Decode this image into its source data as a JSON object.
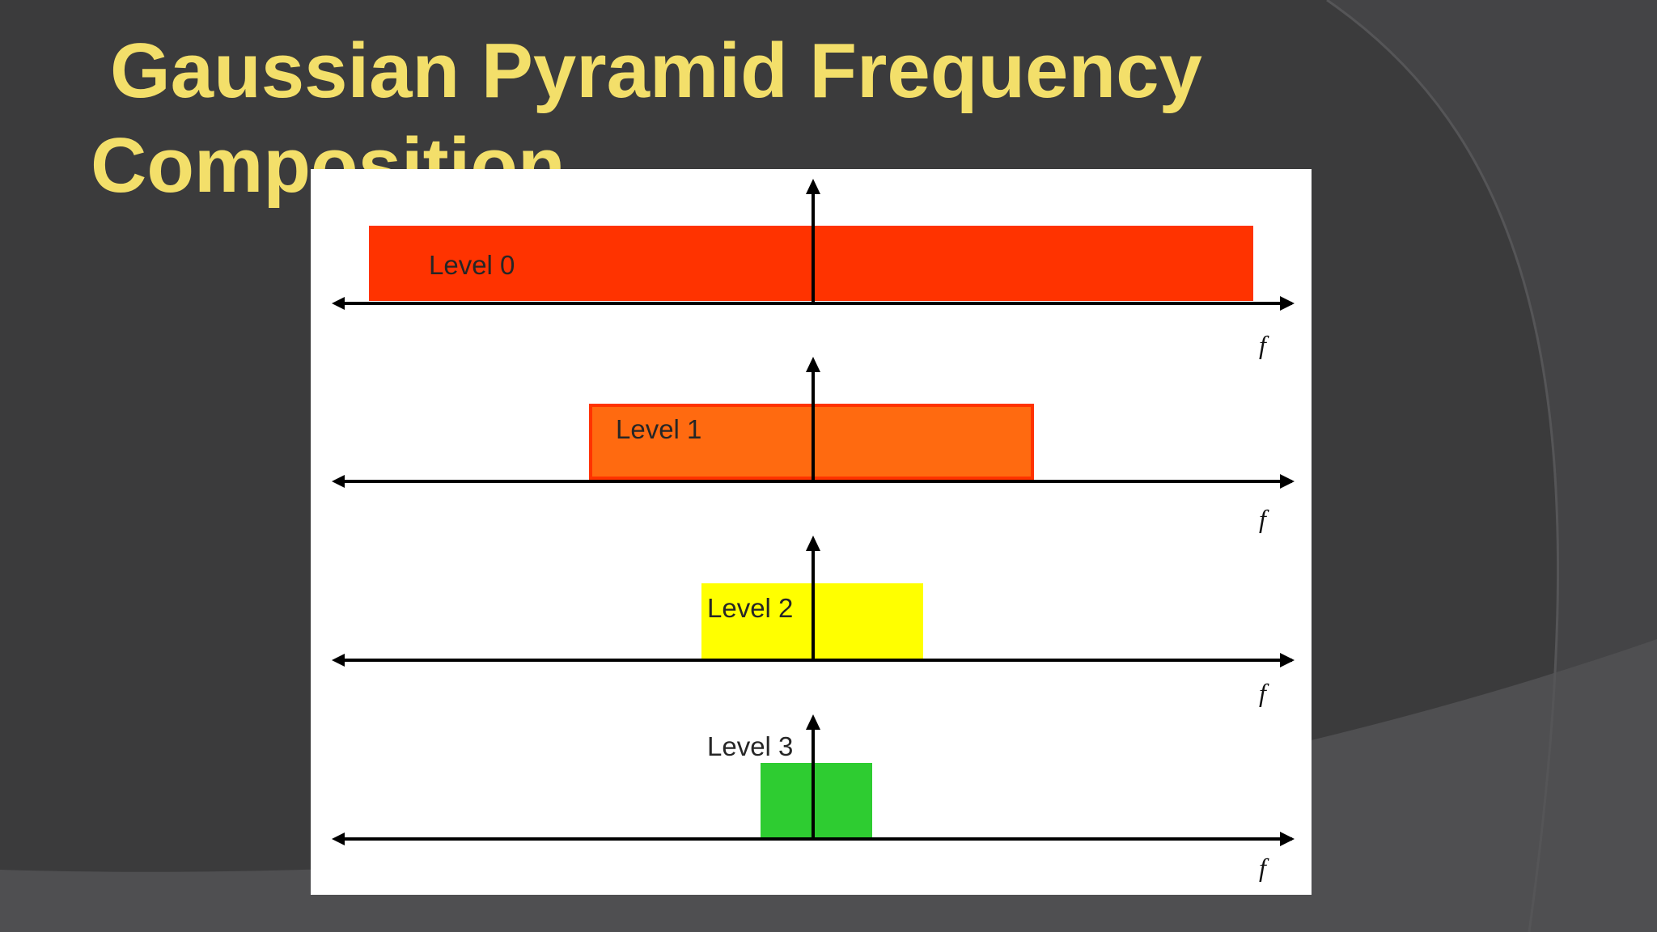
{
  "slide": {
    "title_line_1": "Gaussian Pyramid Frequency",
    "title_line_2": "Composition",
    "title_color": "#f3df6a",
    "background_color": "#3b3b3c"
  },
  "diagram": {
    "axis_label": "f",
    "levels": [
      {
        "label": "Level 0",
        "fill": "#ff3300",
        "stroke": "#ff3300",
        "relative_bandwidth": 1.0
      },
      {
        "label": "Level 1",
        "fill": "#ff6a10",
        "stroke": "#ff3300",
        "relative_bandwidth": 0.5
      },
      {
        "label": "Level 2",
        "fill": "#ffff00",
        "stroke": "#ffff00",
        "relative_bandwidth": 0.25
      },
      {
        "label": "Level 3",
        "fill": "#2ecc31",
        "stroke": "#2ecc31",
        "relative_bandwidth": 0.125
      }
    ]
  }
}
